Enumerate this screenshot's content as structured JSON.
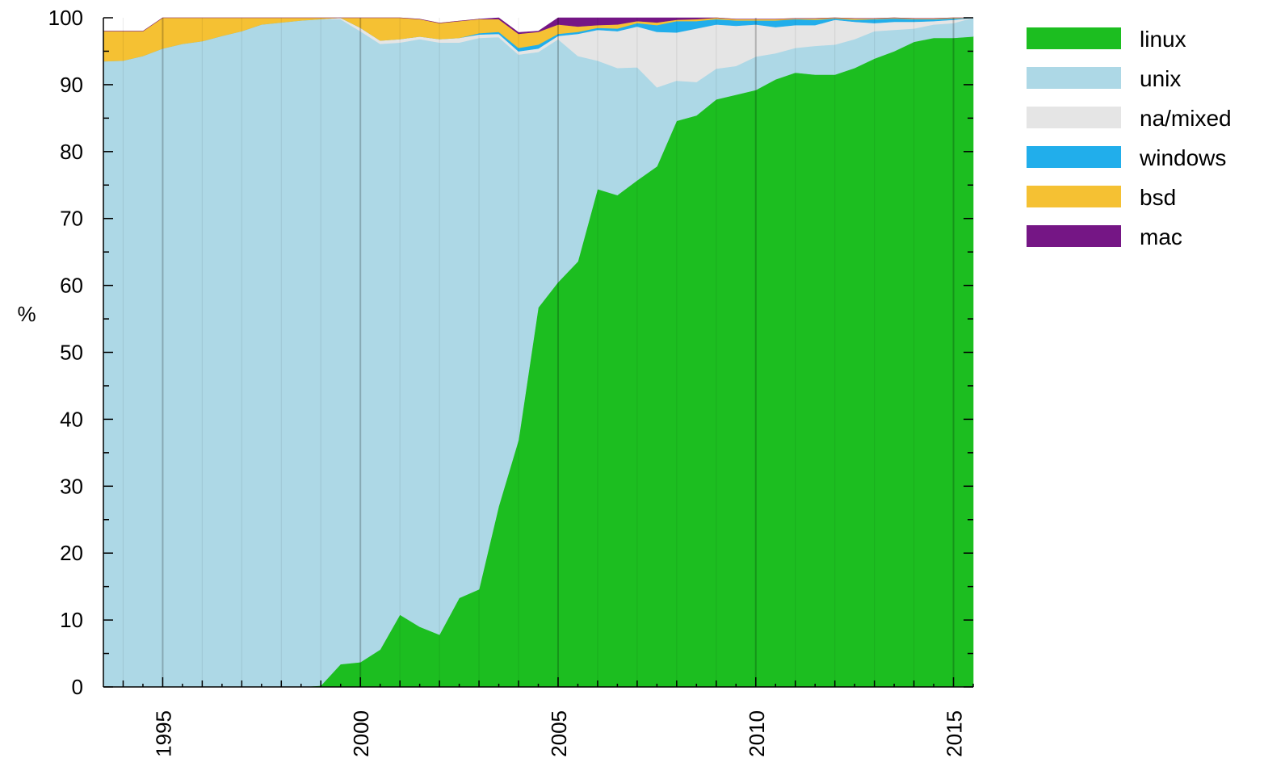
{
  "chart_data": {
    "type": "area",
    "stacked": true,
    "normalized_percent": true,
    "title": "",
    "xlabel": "",
    "ylabel": "%",
    "xlim": [
      1993.5,
      2015.5
    ],
    "ylim": [
      0,
      100
    ],
    "y_ticks": [
      0,
      10,
      20,
      30,
      40,
      50,
      60,
      70,
      80,
      90,
      100
    ],
    "x_ticks": [
      1995,
      2000,
      2005,
      2010,
      2015
    ],
    "x_tick_rotation": -90,
    "grid": true,
    "legend_position": "right",
    "x": [
      1993.5,
      1994,
      1994.5,
      1995,
      1995.5,
      1996,
      1996.5,
      1997,
      1997.5,
      1998,
      1998.5,
      1999,
      1999.5,
      2000,
      2000.5,
      2001,
      2001.5,
      2002,
      2002.5,
      2003,
      2003.5,
      2004,
      2004.5,
      2005,
      2005.5,
      2006,
      2006.5,
      2007,
      2007.5,
      2008,
      2008.5,
      2009,
      2009.5,
      2010,
      2010.5,
      2011,
      2011.5,
      2012,
      2012.5,
      2013,
      2013.5,
      2014,
      2014.5,
      2015,
      2015.5
    ],
    "series": [
      {
        "name": "linux",
        "color": "#1cbe20",
        "values": [
          0,
          0,
          0,
          0,
          0,
          0,
          0,
          0,
          0,
          0,
          0,
          0.2,
          3.4,
          3.7,
          5.6,
          10.8,
          9.0,
          7.8,
          13.3,
          14.6,
          27,
          36.9,
          56.7,
          60.5,
          63.6,
          74.4,
          73.5,
          75.7,
          77.8,
          84.6,
          85.4,
          87.8,
          88.5,
          89.2,
          90.8,
          91.8,
          91.5,
          91.5,
          92.5,
          93.9,
          95.0,
          96.4,
          97.0,
          97.0,
          97.2
        ]
      },
      {
        "name": "unix",
        "color": "#add8e6",
        "values": [
          93.5,
          93.6,
          94.3,
          95.4,
          96.1,
          96.5,
          97.3,
          98.0,
          99.0,
          99.3,
          99.6,
          99.6,
          96.4,
          94.3,
          90.5,
          85.5,
          87.8,
          88.5,
          83.0,
          82.4,
          70.1,
          57.6,
          38.2,
          36.3,
          30.7,
          19.2,
          19.0,
          16.9,
          11.8,
          6.0,
          5.0,
          4.6,
          4.3,
          5.0,
          3.9,
          3.7,
          4.3,
          4.5,
          4.3,
          4.1,
          3.2,
          2.0,
          2.0,
          2.2,
          2.8
        ]
      },
      {
        "name": "na/mixed",
        "color": "#e5e5e5",
        "values": [
          0,
          0,
          0,
          0,
          0,
          0,
          0,
          0,
          0,
          0,
          0,
          0,
          0.2,
          0.5,
          0.5,
          0.5,
          0.4,
          0.5,
          0.7,
          0.5,
          0.5,
          0.5,
          0.5,
          0.5,
          3.3,
          4.6,
          5.5,
          6.1,
          8.3,
          7.2,
          8.0,
          6.6,
          6.0,
          4.8,
          3.9,
          3.4,
          3.1,
          3.7,
          2.6,
          1.2,
          1.2,
          1.0,
          0.5,
          0.5,
          0
        ]
      },
      {
        "name": "windows",
        "color": "#21aeeb",
        "values": [
          0,
          0,
          0,
          0,
          0,
          0,
          0,
          0,
          0,
          0,
          0,
          0,
          0,
          0,
          0,
          0,
          0,
          0,
          0,
          0.2,
          0.3,
          0.5,
          0.6,
          0.3,
          0.3,
          0.3,
          0.4,
          0.5,
          1.0,
          1.7,
          1.1,
          0.8,
          0.8,
          0.6,
          1.0,
          0.9,
          0.8,
          0.2,
          0.3,
          0.6,
          0.5,
          0.4,
          0.3,
          0.2,
          0
        ]
      },
      {
        "name": "bsd",
        "color": "#f5c133",
        "values": [
          4.5,
          4.4,
          3.7,
          4.6,
          3.9,
          3.5,
          2.7,
          2.0,
          1.0,
          0.7,
          0.4,
          0.2,
          0,
          1.5,
          3.4,
          3.2,
          2.6,
          2.4,
          2.5,
          2.1,
          1.9,
          2.1,
          1.9,
          1.4,
          0.8,
          0.4,
          0.6,
          0.3,
          0.4,
          0.2,
          0.3,
          0.2,
          0.2,
          0.2,
          0.2,
          0.1,
          0.2,
          0.1,
          0.2,
          0.1,
          0.1,
          0.1,
          0.1,
          0.1,
          0
        ]
      },
      {
        "name": "mac",
        "color": "#751685",
        "values": [
          0,
          0,
          0,
          0,
          0,
          0,
          0,
          0,
          0,
          0,
          0,
          0,
          0,
          0,
          0,
          0,
          0,
          0,
          0,
          0,
          0.2,
          0.2,
          0.1,
          1.0,
          1.3,
          1.1,
          1.0,
          0.5,
          0.7,
          0.3,
          0.2,
          0,
          0,
          0,
          0,
          0,
          0,
          0,
          0,
          0,
          0,
          0,
          0,
          0,
          0
        ]
      }
    ]
  }
}
